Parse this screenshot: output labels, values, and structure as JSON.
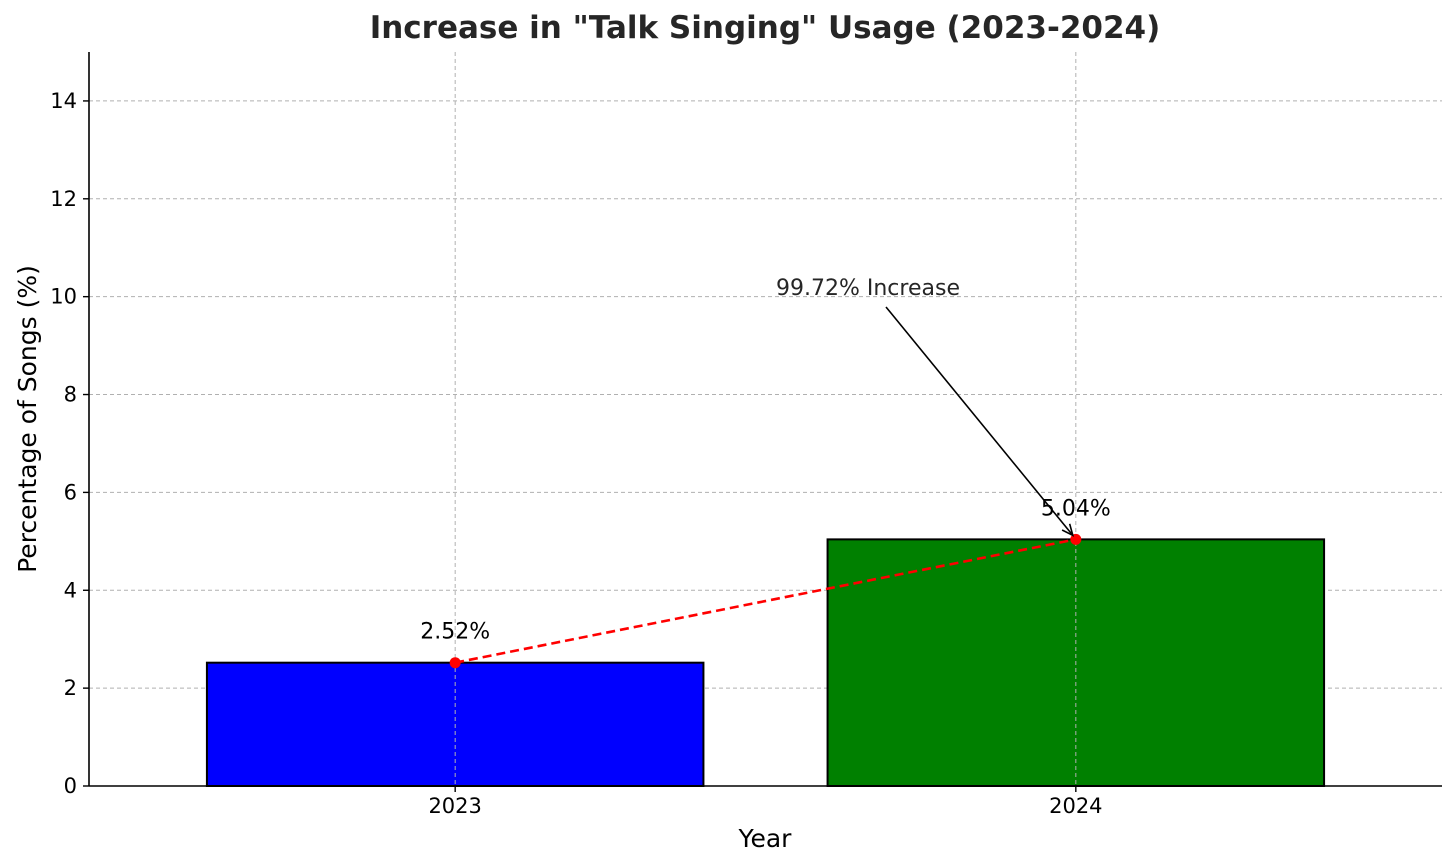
{
  "chart_data": {
    "type": "bar",
    "title": "Increase in \"Talk Singing\" Usage (2023-2024)",
    "xlabel": "Year",
    "ylabel": "Percentage of Songs (%)",
    "categories": [
      "2023",
      "2024"
    ],
    "values": [
      2.52,
      5.04
    ],
    "bar_colors": [
      "#0000ff",
      "#008000"
    ],
    "data_labels": [
      "2.52%",
      "5.04%"
    ],
    "ylim": [
      0,
      15
    ],
    "yticks": [
      0,
      2,
      4,
      6,
      8,
      10,
      12,
      14
    ],
    "grid": true,
    "trend_line": {
      "color": "#ff0000",
      "style": "dashed",
      "values": [
        2.52,
        5.04
      ]
    },
    "annotation": {
      "text": "99.72% Increase",
      "points_to_category": "2024",
      "points_to_value": 5.04
    }
  }
}
